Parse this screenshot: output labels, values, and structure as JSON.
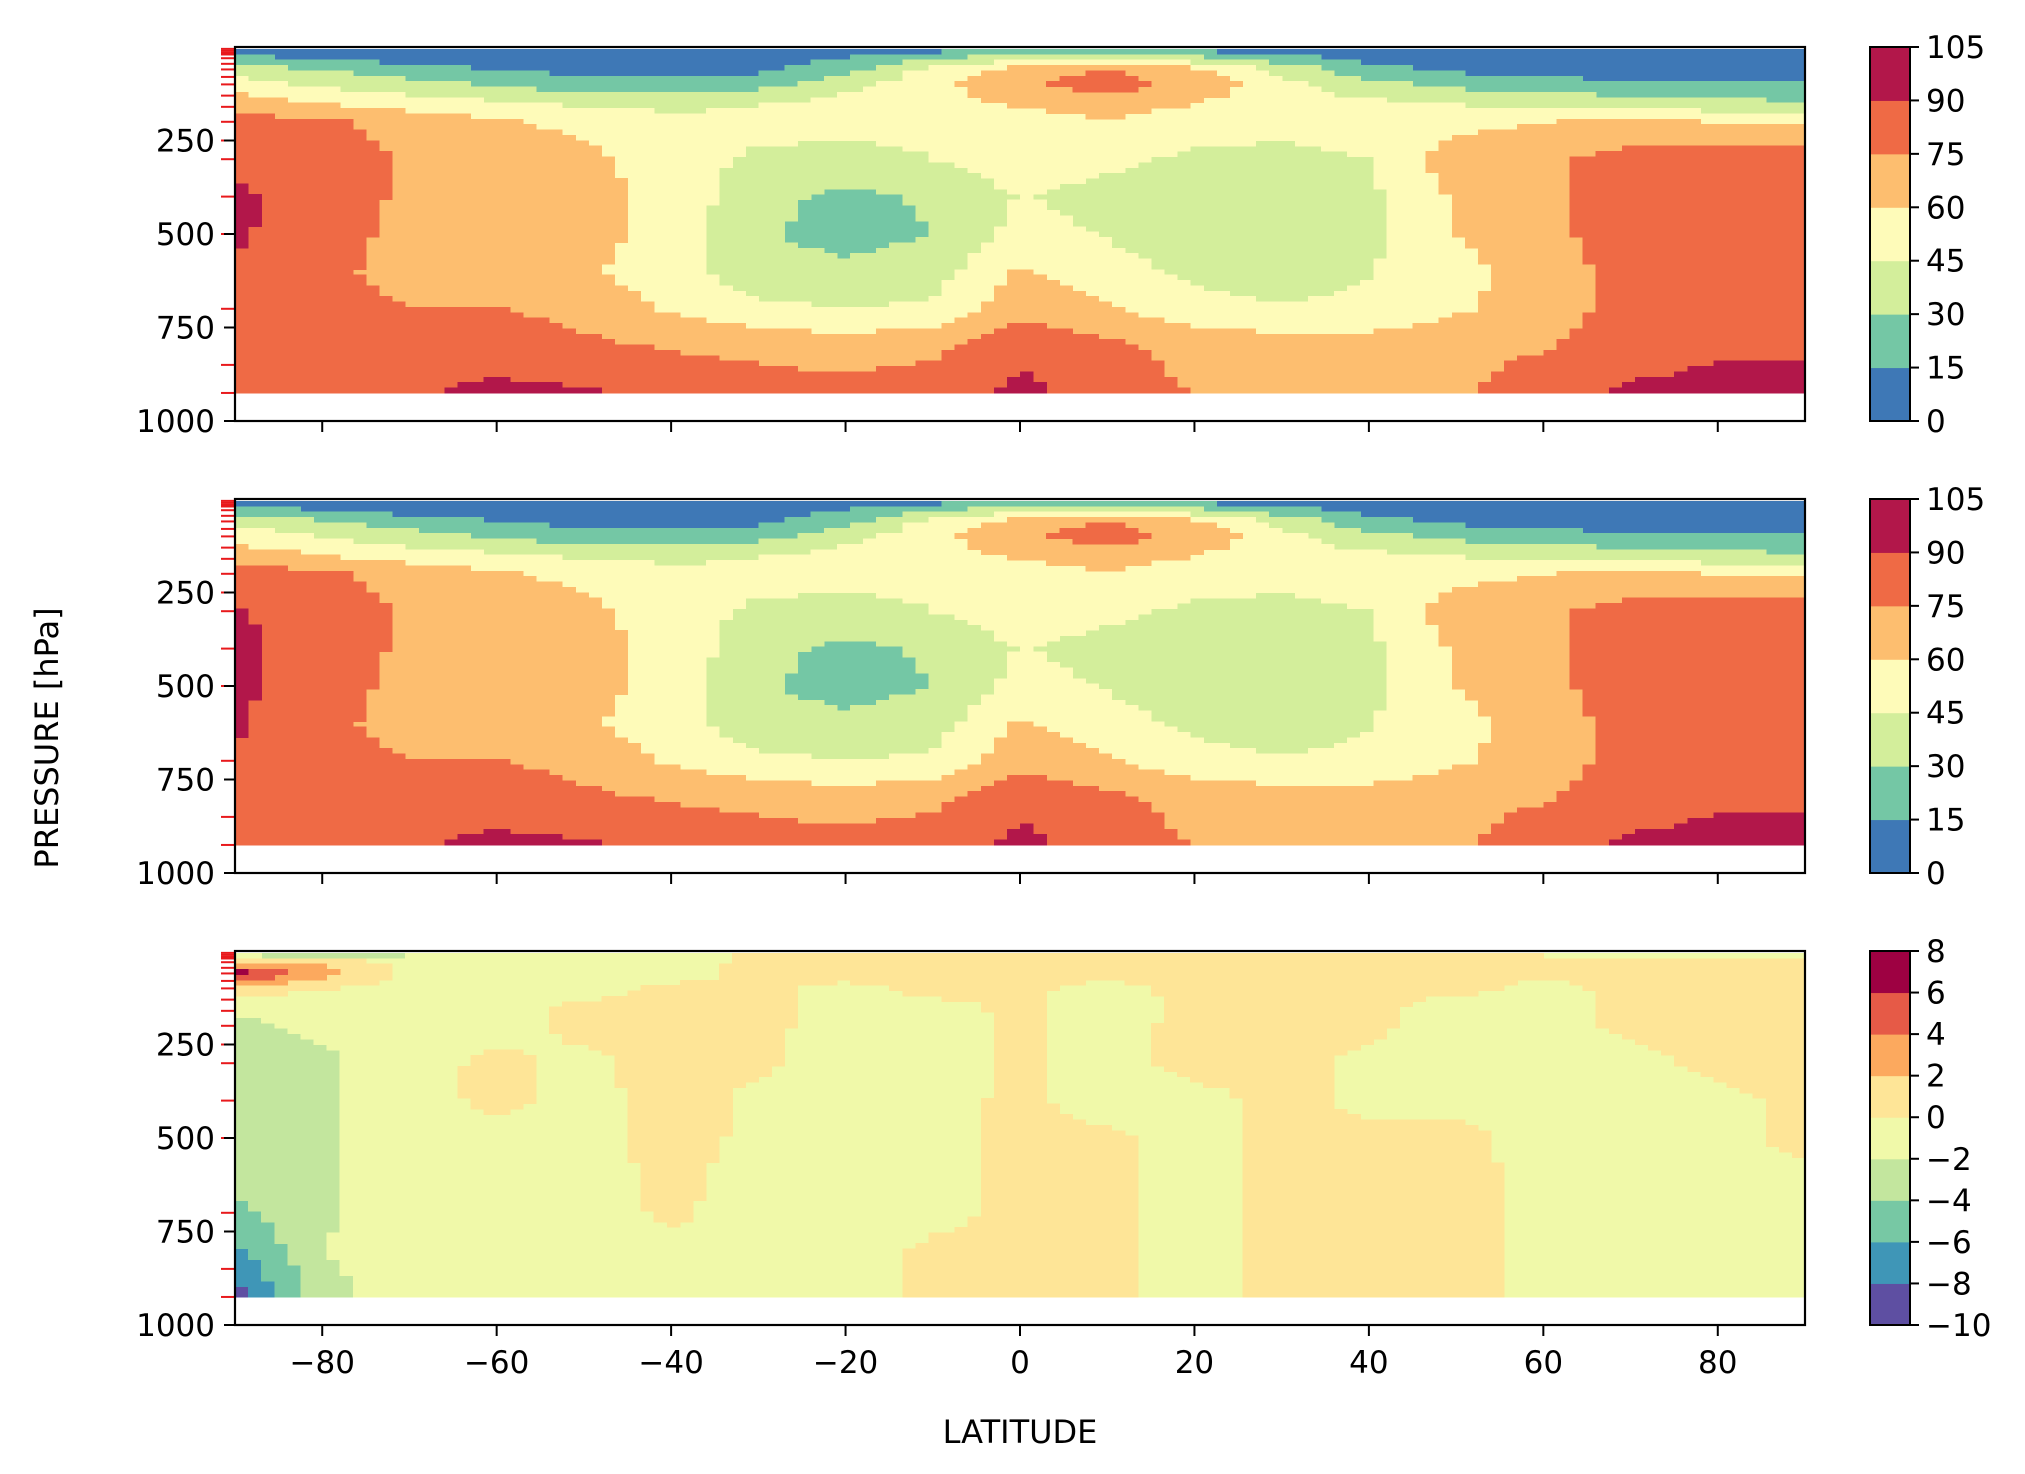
{
  "chart_data": {
    "type": "contourf",
    "xlabel": "LATITUDE",
    "ylabel": "PRESSURE [hPa]",
    "xlim": [
      -90,
      90
    ],
    "ylim": [
      1000,
      0
    ],
    "x_ticks": [
      -80,
      -60,
      -40,
      -20,
      0,
      20,
      40,
      60,
      80
    ],
    "x_tick_labels": [
      "−80",
      "−60",
      "−40",
      "−20",
      "0",
      "20",
      "40",
      "60",
      "80"
    ],
    "y_ticks": [
      250,
      500,
      750,
      1000
    ],
    "y_tick_labels": [
      "250",
      "500",
      "750",
      "1000"
    ],
    "model_level_markers_hPa": [
      5,
      10,
      15,
      20,
      30,
      45,
      60,
      80,
      100,
      130,
      160,
      200,
      250,
      300,
      400,
      500,
      700,
      850,
      925
    ],
    "data_bottom_hPa": 925,
    "colormap": "Spectral_r",
    "panels": [
      {
        "levels": [
          0,
          15,
          30,
          45,
          60,
          75,
          90,
          105
        ],
        "colorbar_ticks": [
          "0",
          "15",
          "30",
          "45",
          "60",
          "75",
          "90",
          "105"
        ],
        "colors": [
          "#3e78b6",
          "#74c7a5",
          "#d3ee9b",
          "#fefbb9",
          "#fdbe6f",
          "#ef6a45",
          "#b2174a"
        ],
        "latitudes": [
          -90,
          -80,
          -70,
          -60,
          -50,
          -40,
          -30,
          -20,
          -10,
          0,
          10,
          20,
          30,
          40,
          50,
          60,
          70,
          80,
          90
        ],
        "pressures": [
          5,
          30,
          60,
          100,
          150,
          200,
          300,
          400,
          500,
          600,
          700,
          800,
          925
        ],
        "values": [
          [
            5,
            4,
            3,
            3,
            3,
            3,
            3,
            5,
            8,
            12,
            14,
            10,
            6,
            3,
            3,
            3,
            3,
            3,
            3
          ],
          [
            20,
            12,
            8,
            6,
            5,
            6,
            8,
            15,
            30,
            38,
            40,
            34,
            22,
            10,
            6,
            5,
            5,
            5,
            6
          ],
          [
            38,
            30,
            22,
            15,
            10,
            9,
            12,
            25,
            50,
            68,
            75,
            65,
            40,
            20,
            12,
            8,
            6,
            6,
            7
          ],
          [
            52,
            42,
            35,
            28,
            22,
            20,
            24,
            40,
            55,
            72,
            82,
            70,
            50,
            34,
            26,
            22,
            18,
            16,
            16
          ],
          [
            68,
            60,
            52,
            48,
            42,
            40,
            44,
            50,
            55,
            62,
            68,
            60,
            52,
            48,
            44,
            40,
            38,
            34,
            32
          ],
          [
            82,
            78,
            70,
            62,
            56,
            50,
            50,
            50,
            48,
            52,
            58,
            52,
            48,
            50,
            55,
            60,
            62,
            60,
            58
          ],
          [
            86,
            80,
            74,
            70,
            64,
            52,
            42,
            40,
            45,
            52,
            48,
            42,
            42,
            45,
            68,
            72,
            82,
            86,
            86
          ],
          [
            93,
            83,
            72,
            74,
            66,
            55,
            35,
            26,
            32,
            46,
            40,
            36,
            36,
            42,
            62,
            72,
            84,
            88,
            88
          ],
          [
            92,
            82,
            70,
            72,
            66,
            54,
            32,
            24,
            30,
            50,
            44,
            38,
            36,
            42,
            60,
            70,
            84,
            88,
            88
          ],
          [
            88,
            82,
            65,
            68,
            62,
            52,
            36,
            34,
            38,
            62,
            50,
            42,
            38,
            44,
            56,
            66,
            82,
            88,
            88
          ],
          [
            86,
            82,
            76,
            76,
            70,
            58,
            48,
            45,
            48,
            70,
            62,
            50,
            46,
            48,
            58,
            66,
            82,
            86,
            86
          ],
          [
            86,
            86,
            84,
            82,
            78,
            74,
            72,
            68,
            72,
            86,
            78,
            70,
            68,
            68,
            70,
            74,
            84,
            88,
            88
          ],
          [
            86,
            86,
            88,
            94,
            92,
            84,
            80,
            80,
            82,
            94,
            84,
            74,
            70,
            70,
            72,
            84,
            92,
            94,
            96
          ]
        ]
      },
      {
        "levels": [
          0,
          15,
          30,
          45,
          60,
          75,
          90,
          105
        ],
        "colorbar_ticks": [
          "0",
          "15",
          "30",
          "45",
          "60",
          "75",
          "90",
          "105"
        ],
        "colors": [
          "#3e78b6",
          "#74c7a5",
          "#d3ee9b",
          "#fefbb9",
          "#fdbe6f",
          "#ef6a45",
          "#b2174a"
        ],
        "latitudes": [
          -90,
          -80,
          -70,
          -60,
          -50,
          -40,
          -30,
          -20,
          -10,
          0,
          10,
          20,
          30,
          40,
          50,
          60,
          70,
          80,
          90
        ],
        "pressures": [
          5,
          30,
          60,
          100,
          150,
          200,
          300,
          400,
          500,
          600,
          700,
          800,
          925
        ],
        "values": [
          [
            6,
            4,
            3,
            3,
            3,
            3,
            3,
            5,
            8,
            12,
            14,
            10,
            6,
            3,
            3,
            3,
            3,
            3,
            3
          ],
          [
            24,
            14,
            9,
            6,
            5,
            6,
            8,
            15,
            30,
            38,
            40,
            34,
            22,
            10,
            6,
            5,
            5,
            5,
            6
          ],
          [
            42,
            32,
            23,
            16,
            10,
            9,
            12,
            25,
            50,
            68,
            75,
            65,
            40,
            20,
            12,
            8,
            6,
            6,
            7
          ],
          [
            54,
            44,
            36,
            28,
            22,
            20,
            24,
            40,
            55,
            72,
            82,
            70,
            50,
            34,
            26,
            22,
            18,
            16,
            16
          ],
          [
            68,
            60,
            52,
            48,
            42,
            40,
            44,
            50,
            55,
            62,
            68,
            60,
            52,
            48,
            44,
            40,
            38,
            34,
            32
          ],
          [
            84,
            78,
            70,
            62,
            56,
            50,
            50,
            50,
            48,
            52,
            58,
            52,
            48,
            50,
            55,
            60,
            62,
            60,
            58
          ],
          [
            92,
            80,
            74,
            70,
            64,
            52,
            42,
            40,
            45,
            52,
            48,
            42,
            42,
            45,
            68,
            72,
            82,
            86,
            86
          ],
          [
            94,
            83,
            72,
            74,
            66,
            55,
            35,
            26,
            32,
            46,
            40,
            36,
            36,
            42,
            62,
            72,
            84,
            88,
            88
          ],
          [
            93,
            82,
            70,
            72,
            66,
            54,
            32,
            24,
            30,
            50,
            44,
            38,
            36,
            42,
            60,
            70,
            84,
            88,
            88
          ],
          [
            91,
            82,
            65,
            68,
            62,
            52,
            36,
            34,
            38,
            62,
            50,
            42,
            38,
            44,
            56,
            66,
            82,
            88,
            88
          ],
          [
            90,
            82,
            76,
            76,
            70,
            58,
            48,
            45,
            48,
            70,
            62,
            50,
            46,
            48,
            58,
            66,
            82,
            86,
            86
          ],
          [
            88,
            86,
            84,
            82,
            78,
            74,
            72,
            68,
            72,
            86,
            78,
            70,
            68,
            68,
            70,
            74,
            84,
            88,
            88
          ],
          [
            88,
            86,
            88,
            94,
            92,
            84,
            80,
            80,
            82,
            94,
            84,
            74,
            70,
            70,
            72,
            84,
            92,
            94,
            96
          ]
        ]
      },
      {
        "levels": [
          -10,
          -8,
          -6,
          -4,
          -2,
          0,
          2,
          4,
          6,
          8
        ],
        "colorbar_ticks": [
          "−10",
          "−8",
          "−6",
          "−4",
          "−2",
          "0",
          "2",
          "4",
          "6",
          "8"
        ],
        "colors": [
          "#5e4fa2",
          "#3f96b7",
          "#77c8a4",
          "#c3e69e",
          "#f0f9a9",
          "#fee597",
          "#fca95e",
          "#e65a47",
          "#9e0142"
        ],
        "latitudes": [
          -90,
          -80,
          -70,
          -60,
          -50,
          -40,
          -30,
          -20,
          -10,
          0,
          10,
          20,
          30,
          40,
          50,
          60,
          70,
          80,
          90
        ],
        "pressures": [
          5,
          30,
          60,
          100,
          150,
          200,
          300,
          400,
          500,
          600,
          700,
          800,
          925
        ],
        "values": [
          [
            -3.0,
            -5.0,
            -2.5,
            -1.0,
            -0.8,
            -0.6,
            0.3,
            0.5,
            0.5,
            0.5,
            0.5,
            0.4,
            0.4,
            0.3,
            0.2,
            0.0,
            -0.5,
            -1.0,
            -3.0
          ],
          [
            2.5,
            1.5,
            -0.5,
            -1.0,
            -0.8,
            -0.5,
            0.3,
            0.5,
            0.5,
            0.4,
            0.4,
            0.4,
            0.3,
            0.3,
            0.2,
            0.0,
            0.2,
            0.5,
            0.8
          ],
          [
            7.0,
            3.0,
            -0.5,
            -1.0,
            -0.8,
            -0.5,
            0.3,
            0.4,
            0.4,
            0.3,
            0.3,
            0.3,
            0.3,
            0.2,
            0.2,
            0.2,
            0.3,
            0.3,
            0.3
          ],
          [
            1.0,
            0.0,
            -0.5,
            -0.8,
            -0.5,
            0.3,
            0.3,
            -0.3,
            0.3,
            0.2,
            -0.3,
            0.3,
            0.4,
            0.3,
            0.3,
            -0.3,
            0.3,
            0.3,
            0.3
          ],
          [
            -1.5,
            -1.0,
            -0.8,
            -0.5,
            0.3,
            0.4,
            0.3,
            -0.5,
            -0.3,
            0.2,
            -0.5,
            0.3,
            0.4,
            0.3,
            -0.5,
            -0.5,
            0.3,
            0.3,
            0.3
          ],
          [
            -2.5,
            -1.5,
            -0.8,
            -0.5,
            0.3,
            0.5,
            0.3,
            -0.5,
            -0.5,
            0.2,
            -0.5,
            0.4,
            0.4,
            0.3,
            -0.6,
            -0.5,
            0.3,
            0.3,
            0.3
          ],
          [
            -3.0,
            -2.5,
            -0.5,
            0.3,
            -0.3,
            0.5,
            0.2,
            -0.6,
            -0.6,
            0.3,
            -0.6,
            0.5,
            0.4,
            -0.3,
            -0.5,
            -0.5,
            -0.4,
            0.3,
            0.3
          ],
          [
            -3.0,
            -2.5,
            -0.5,
            0.3,
            -0.4,
            0.5,
            -0.3,
            -0.6,
            -0.5,
            0.3,
            -0.6,
            -0.5,
            0.4,
            -0.3,
            -0.3,
            -0.5,
            -0.5,
            -0.3,
            0.3
          ],
          [
            -3.0,
            -2.5,
            -0.5,
            -0.4,
            -0.5,
            0.5,
            -0.3,
            -0.6,
            -0.5,
            0.3,
            0.3,
            -0.5,
            0.4,
            0.3,
            0.3,
            -0.4,
            -0.5,
            -0.3,
            0.3
          ],
          [
            -3.5,
            -2.5,
            -0.5,
            -0.5,
            -0.5,
            0.3,
            -0.5,
            -0.5,
            -0.3,
            0.3,
            0.3,
            -0.5,
            0.3,
            0.3,
            0.3,
            -0.3,
            -0.5,
            -0.3,
            -0.3
          ],
          [
            -4.5,
            -2.5,
            -0.5,
            -0.6,
            -0.5,
            0.2,
            -0.5,
            -0.5,
            -0.3,
            0.3,
            0.3,
            -0.5,
            0.3,
            0.3,
            0.3,
            -0.3,
            -0.5,
            -0.3,
            -0.3
          ],
          [
            -6.5,
            -2.0,
            -0.5,
            -0.6,
            -0.5,
            -0.3,
            -0.5,
            -0.5,
            0.2,
            0.3,
            0.3,
            -0.5,
            0.3,
            0.3,
            0.3,
            -0.3,
            -0.5,
            -0.3,
            -0.3
          ],
          [
            -9.0,
            -3.0,
            -0.5,
            -0.5,
            -0.5,
            -0.4,
            -0.5,
            -0.5,
            0.2,
            0.3,
            0.3,
            -0.5,
            0.3,
            0.3,
            0.3,
            -0.3,
            -0.5,
            -0.3,
            -0.3
          ]
        ]
      }
    ]
  }
}
